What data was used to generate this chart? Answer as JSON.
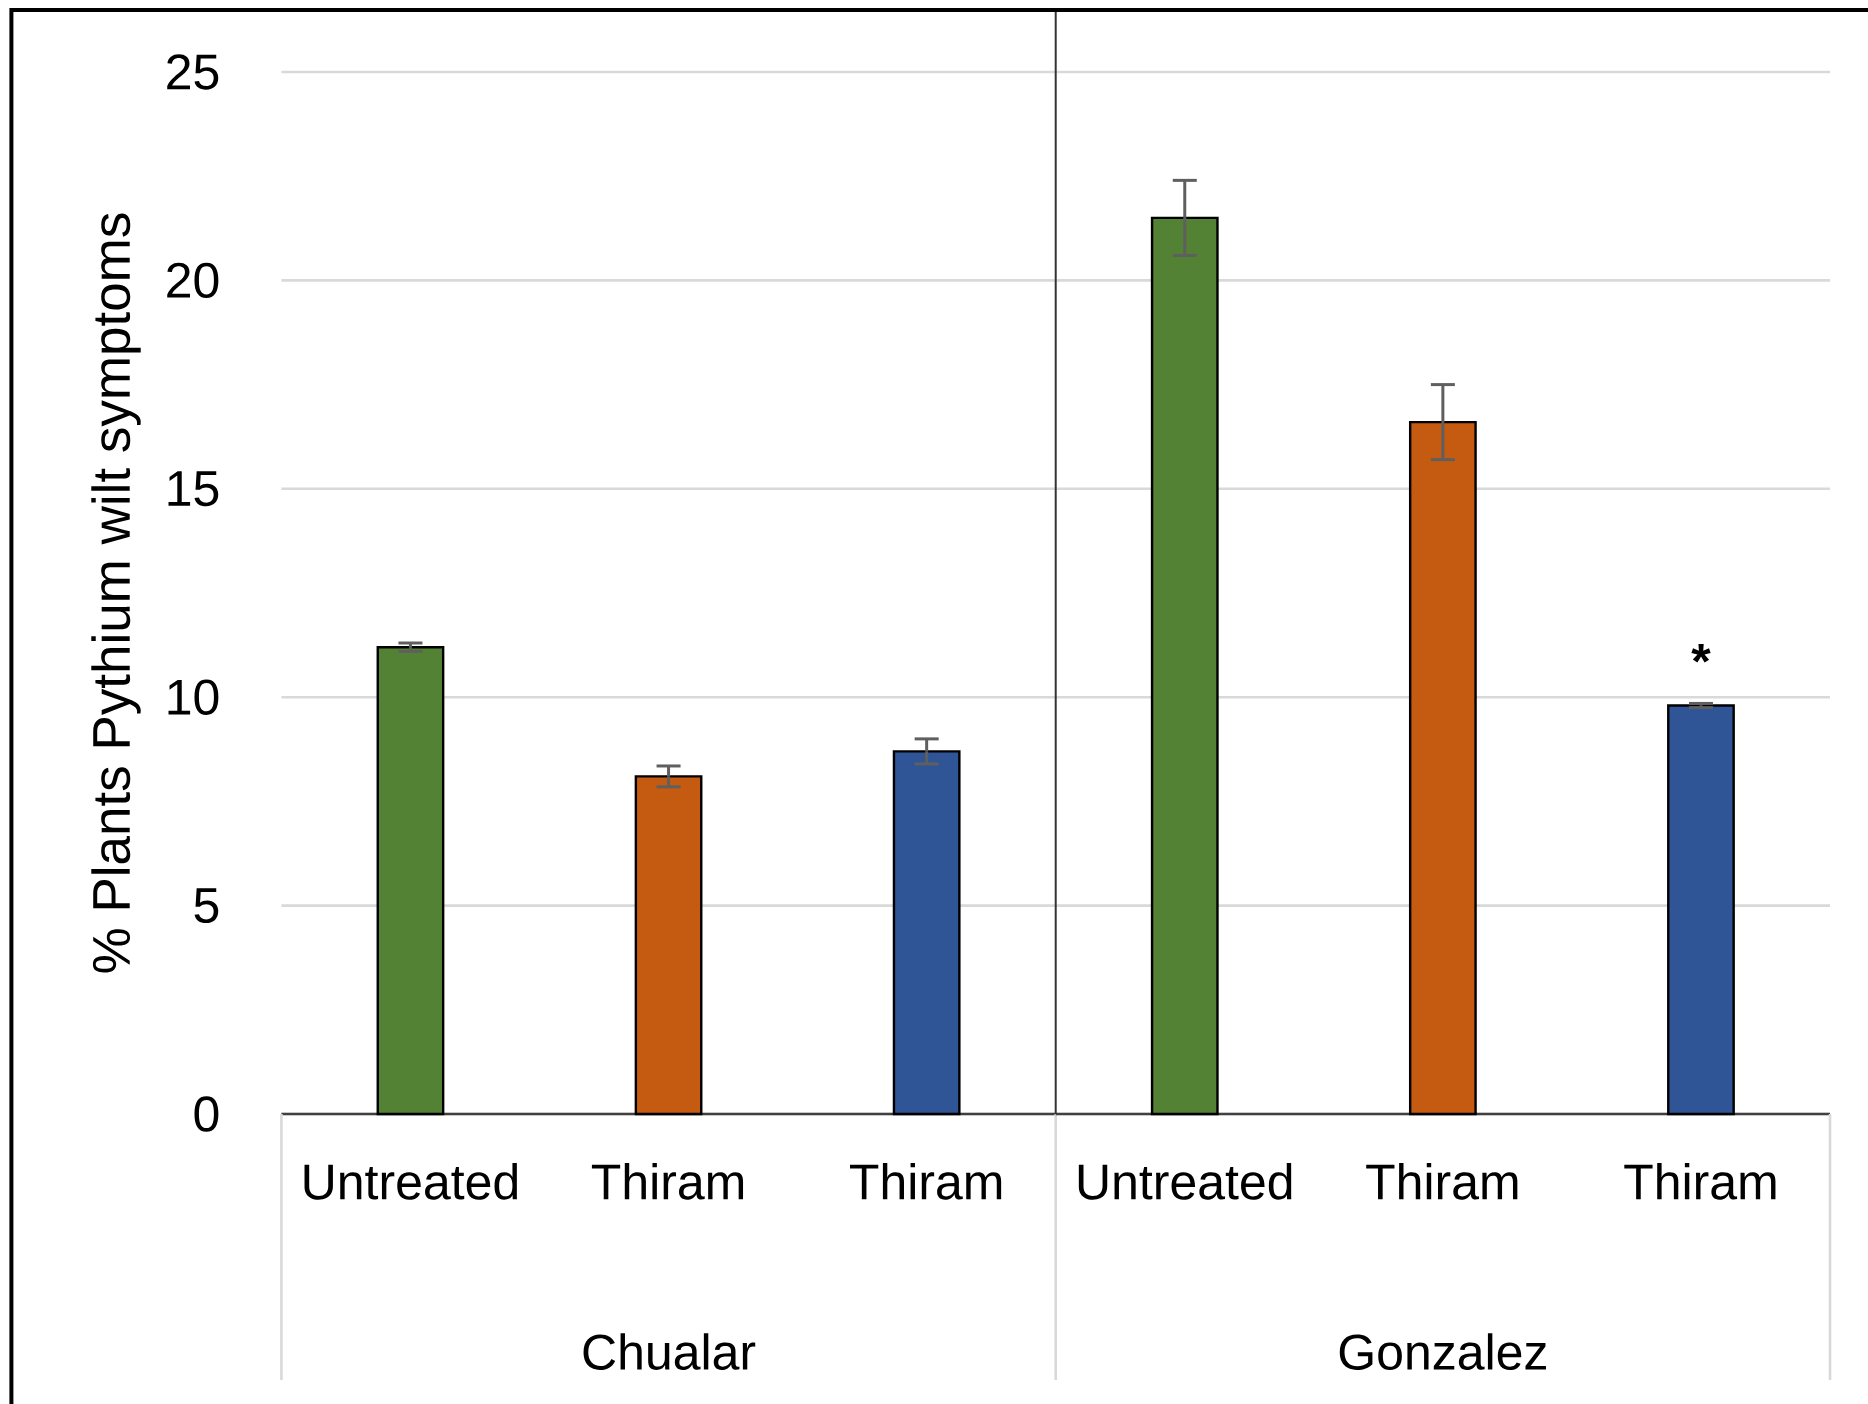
{
  "chart_data": [
    {
      "type": "bar",
      "xlabel": "Chualar",
      "ylabel": "% Plants Pythium wilt symptoms",
      "categories": [
        "Untreated",
        "Thiram",
        "Thiram"
      ],
      "values": [
        11.2,
        8.1,
        8.7
      ],
      "errors": [
        0.1,
        0.25,
        0.3
      ],
      "colors": [
        "#548235",
        "#c55a11",
        "#2f5597"
      ],
      "ylim": [
        0,
        25
      ],
      "yticks": [
        0,
        5,
        10,
        15,
        20,
        25
      ],
      "grid": "y"
    },
    {
      "type": "bar",
      "xlabel": "Gonzalez",
      "categories": [
        "Untreated",
        "Thiram",
        "Thiram"
      ],
      "values": [
        21.5,
        16.6,
        9.8
      ],
      "errors": [
        0.9,
        0.9,
        0.05
      ],
      "value_labels": [
        null,
        null,
        "*"
      ],
      "colors": [
        "#548235",
        "#c55a11",
        "#2f5597"
      ],
      "ylim": [
        0,
        25
      ],
      "yticks": [
        0,
        5,
        10,
        15,
        20,
        25
      ],
      "grid": "y",
      "tick_labels": "x"
    }
  ]
}
